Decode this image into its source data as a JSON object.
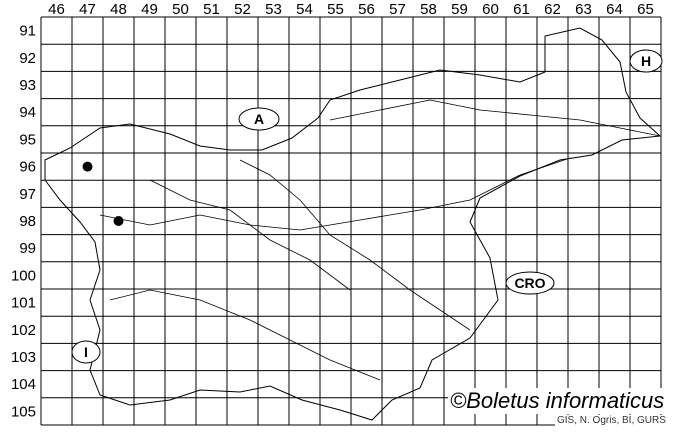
{
  "map": {
    "columns": [
      "46",
      "47",
      "48",
      "49",
      "50",
      "51",
      "52",
      "53",
      "54",
      "55",
      "56",
      "57",
      "58",
      "59",
      "60",
      "61",
      "62",
      "63",
      "64",
      "65"
    ],
    "rows": [
      "91",
      "92",
      "93",
      "94",
      "95",
      "96",
      "97",
      "98",
      "99",
      "100",
      "101",
      "102",
      "103",
      "104",
      "105"
    ],
    "records": [
      {
        "column": "47",
        "row": "96"
      },
      {
        "column": "48",
        "row": "98"
      }
    ],
    "country_labels": [
      "A",
      "H",
      "CRO",
      "I"
    ],
    "marker_color": "#000000",
    "line_color": "#000000"
  },
  "credit": "©Boletus informaticus",
  "source": "GIS, N. Ogris, BI, GURS"
}
